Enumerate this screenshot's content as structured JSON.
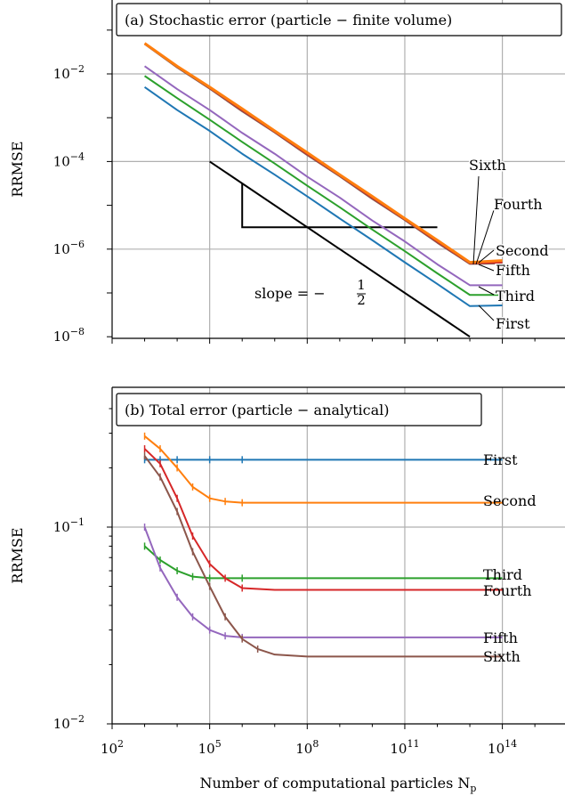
{
  "chart_data": [
    {
      "type": "line",
      "title": "(a) Stochastic error (particle − finite volume)",
      "xlabel": "",
      "ylabel": "RRMSE",
      "xscale": "log",
      "yscale": "log",
      "xlim": [
        100,
        1000000000000000
      ],
      "ylim": [
        1e-08,
        0.5
      ],
      "grid": true,
      "yticks": [
        {
          "value": 0.01,
          "base": "10",
          "exp": "−2"
        },
        {
          "value": 0.0001,
          "base": "10",
          "exp": "−4"
        },
        {
          "value": 1e-06,
          "base": "10",
          "exp": "−6"
        },
        {
          "value": 1e-08,
          "base": "10",
          "exp": "−8"
        }
      ],
      "slope_annotation": {
        "text": "slope = −",
        "fraction_num": "1",
        "fraction_den": "2",
        "line": [
          [
            100000,
            0.0001
          ],
          [
            10000000000000,
            1e-08
          ]
        ],
        "triangle": [
          [
            1000000,
            3.16e-05
          ],
          [
            1000000,
            3.16e-06
          ],
          [
            1000000000000,
            3.16e-06
          ]
        ]
      },
      "series": [
        {
          "name": "First",
          "color": "#1f77b4",
          "x": [
            1000,
            10000,
            100000,
            1000000,
            10000000,
            100000000,
            1000000000,
            10000000000,
            100000000000,
            1000000000000,
            10000000000000,
            100000000000000
          ],
          "y": [
            0.005,
            0.0015,
            0.0005,
            0.00015,
            5e-05,
            1.6e-05,
            5e-06,
            1.6e-06,
            5e-07,
            1.6e-07,
            5e-08,
            5.2e-08
          ]
        },
        {
          "name": "Second",
          "color": "#ff7f0e",
          "x": [
            1000,
            10000,
            100000,
            1000000,
            10000000,
            100000000,
            1000000000,
            10000000000,
            100000000000,
            1000000000000,
            10000000000000,
            100000000000000
          ],
          "y": [
            0.05,
            0.015,
            0.005,
            0.0016,
            0.0005,
            0.00016,
            5e-05,
            1.6e-05,
            5e-06,
            1.6e-06,
            5e-07,
            5.5e-07
          ]
        },
        {
          "name": "Third",
          "color": "#2ca02c",
          "x": [
            1000,
            10000,
            100000,
            1000000,
            10000000,
            100000000,
            1000000000,
            10000000000,
            100000000000,
            1000000000000,
            10000000000000,
            100000000000000
          ],
          "y": [
            0.009,
            0.0028,
            0.0009,
            0.00028,
            9e-05,
            2.8e-05,
            9e-06,
            2.8e-06,
            9e-07,
            2.8e-07,
            9e-08,
            9e-08
          ]
        },
        {
          "name": "Fourth",
          "color": "#d62728",
          "x": [
            1000,
            10000,
            100000,
            1000000,
            10000000,
            100000000,
            1000000000,
            10000000000,
            100000000000,
            1000000000000,
            10000000000000,
            100000000000000
          ],
          "y": [
            0.049,
            0.015,
            0.0048,
            0.0015,
            0.00048,
            0.00015,
            4.8e-05,
            1.5e-05,
            4.8e-06,
            1.5e-06,
            4.8e-07,
            5e-07
          ]
        },
        {
          "name": "Fifth",
          "color": "#9467bd",
          "x": [
            1000,
            10000,
            100000,
            1000000,
            10000000,
            100000000,
            1000000000,
            10000000000,
            100000000000,
            1000000000000,
            10000000000000,
            100000000000000
          ],
          "y": [
            0.015,
            0.0045,
            0.0015,
            0.00045,
            0.00015,
            4.5e-05,
            1.5e-05,
            4.5e-06,
            1.5e-06,
            4.5e-07,
            1.5e-07,
            1.5e-07
          ]
        },
        {
          "name": "Sixth",
          "color": "#8c564b",
          "x": [
            1000,
            10000,
            100000,
            1000000,
            10000000,
            100000000,
            1000000000,
            10000000000,
            100000000000,
            1000000000000,
            10000000000000,
            100000000000000
          ],
          "y": [
            0.048,
            0.014,
            0.0046,
            0.0014,
            0.00046,
            0.00014,
            4.6e-05,
            1.4e-05,
            4.6e-06,
            1.4e-06,
            4.6e-07,
            4.7e-07
          ]
        }
      ]
    },
    {
      "type": "line",
      "title": "(b) Total error (particle − analytical)",
      "xlabel": "Number of computational particles N",
      "xlabel_sub": "p",
      "ylabel": "RRMSE",
      "xscale": "log",
      "yscale": "log",
      "xlim": [
        100,
        1000000000000000
      ],
      "ylim": [
        0.01,
        0.5
      ],
      "grid": true,
      "xticks": [
        {
          "value": 100,
          "base": "10",
          "exp": "2"
        },
        {
          "value": 100000,
          "base": "10",
          "exp": "5"
        },
        {
          "value": 100000000,
          "base": "10",
          "exp": "8"
        },
        {
          "value": 100000000000,
          "base": "10",
          "exp": "11"
        },
        {
          "value": 100000000000000,
          "base": "10",
          "exp": "14"
        }
      ],
      "yticks": [
        {
          "value": 0.1,
          "base": "10",
          "exp": "−1"
        },
        {
          "value": 0.01,
          "base": "10",
          "exp": "−2"
        }
      ],
      "series": [
        {
          "name": "First",
          "color": "#1f77b4",
          "x": [
            1000,
            3000,
            10000,
            100000,
            1000000,
            10000000000,
            100000000000000
          ],
          "y": [
            0.22,
            0.22,
            0.22,
            0.22,
            0.22,
            0.22,
            0.22
          ]
        },
        {
          "name": "Second",
          "color": "#ff7f0e",
          "x": [
            1000,
            3000,
            10000,
            30000,
            100000,
            300000,
            1000000,
            10000000000,
            100000000000000
          ],
          "y": [
            0.29,
            0.25,
            0.2,
            0.16,
            0.14,
            0.135,
            0.133,
            0.133,
            0.133
          ]
        },
        {
          "name": "Third",
          "color": "#2ca02c",
          "x": [
            1000,
            3000,
            10000,
            30000,
            100000,
            1000000,
            10000000000,
            100000000000000
          ],
          "y": [
            0.08,
            0.068,
            0.06,
            0.056,
            0.055,
            0.055,
            0.055,
            0.055
          ]
        },
        {
          "name": "Fourth",
          "color": "#d62728",
          "x": [
            1000,
            3000,
            10000,
            30000,
            100000,
            300000,
            1000000,
            10000000,
            100000000,
            10000000000,
            100000000000000
          ],
          "y": [
            0.25,
            0.21,
            0.14,
            0.09,
            0.065,
            0.055,
            0.049,
            0.048,
            0.048,
            0.048,
            0.048
          ]
        },
        {
          "name": "Fifth",
          "color": "#9467bd",
          "x": [
            1000,
            3000,
            10000,
            30000,
            100000,
            300000,
            1000000,
            10000000,
            10000000000,
            100000000000000
          ],
          "y": [
            0.1,
            0.062,
            0.044,
            0.035,
            0.03,
            0.028,
            0.0275,
            0.0275,
            0.0275,
            0.0275
          ]
        },
        {
          "name": "Sixth",
          "color": "#8c564b",
          "x": [
            1000,
            3000,
            10000,
            30000,
            100000,
            300000,
            1000000,
            3000000,
            10000000,
            100000000,
            10000000000,
            100000000000000
          ],
          "y": [
            0.23,
            0.18,
            0.12,
            0.075,
            0.05,
            0.035,
            0.027,
            0.024,
            0.0225,
            0.022,
            0.022,
            0.022
          ]
        }
      ]
    }
  ]
}
